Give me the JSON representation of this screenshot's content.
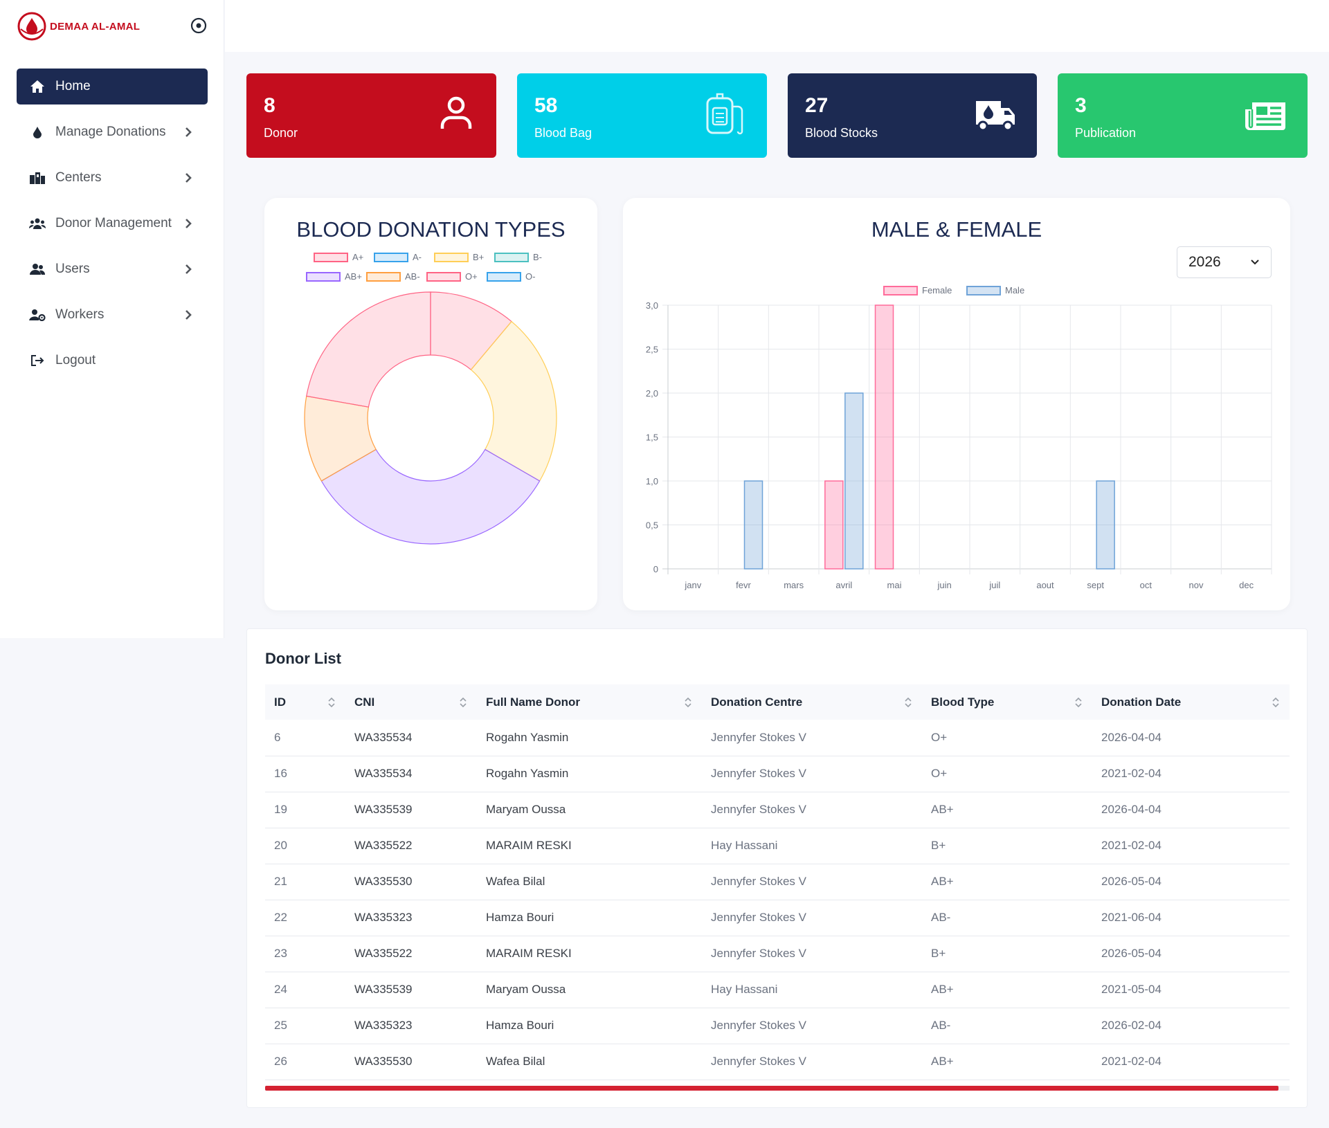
{
  "brand": {
    "name": "DEMAA AL-AMAL",
    "accent": "#c40d1e"
  },
  "sidebar": {
    "items": [
      {
        "label": "Home",
        "icon": "home-icon",
        "active": true,
        "has_submenu": false
      },
      {
        "label": "Manage Donations",
        "icon": "blood-drop-icon",
        "active": false,
        "has_submenu": true
      },
      {
        "label": "Centers",
        "icon": "hospital-icon",
        "active": false,
        "has_submenu": true
      },
      {
        "label": "Donor Management",
        "icon": "people-group-icon",
        "active": false,
        "has_submenu": true
      },
      {
        "label": "Users",
        "icon": "users-icon",
        "active": false,
        "has_submenu": true
      },
      {
        "label": "Workers",
        "icon": "user-gear-icon",
        "active": false,
        "has_submenu": true
      },
      {
        "label": "Logout",
        "icon": "logout-icon",
        "active": false,
        "has_submenu": false
      }
    ]
  },
  "stats": [
    {
      "value": "8",
      "label": "Donor",
      "color": "#c40d1e",
      "icon": "user-icon"
    },
    {
      "value": "58",
      "label": "Blood Bag",
      "color": "#00cfe8",
      "icon": "blood-bag-icon"
    },
    {
      "value": "27",
      "label": "Blood Stocks",
      "color": "#1c2a52",
      "icon": "truck-icon"
    },
    {
      "value": "3",
      "label": "Publication",
      "color": "#28c76f",
      "icon": "newspaper-icon"
    }
  ],
  "donation_types": {
    "title": "BLOOD DONATION TYPES"
  },
  "gender_chart": {
    "title": "MALE & FEMALE",
    "year": "2026"
  },
  "chart_data": [
    {
      "type": "pie",
      "title": "BLOOD DONATION TYPES",
      "categories": [
        "A+",
        "A-",
        "B+",
        "B-",
        "AB+",
        "AB-",
        "O+",
        "O-"
      ],
      "values": [
        1,
        0,
        2,
        0,
        3,
        1,
        2,
        0
      ],
      "colors": [
        "#ff6384",
        "#36a2eb",
        "#ffce56",
        "#4bc0c0",
        "#9966ff",
        "#ff9f40",
        "#ff6384",
        "#36a2eb"
      ],
      "legend": "top"
    },
    {
      "type": "bar",
      "title": "MALE & FEMALE",
      "categories": [
        "janv",
        "fevr",
        "mars",
        "avril",
        "mai",
        "juin",
        "juil",
        "aout",
        "sept",
        "oct",
        "nov",
        "dec"
      ],
      "series": [
        {
          "name": "Female",
          "values": [
            0,
            0,
            0,
            1,
            3,
            0,
            0,
            0,
            0,
            0,
            0,
            0
          ],
          "color": "#ff6b9a"
        },
        {
          "name": "Male",
          "values": [
            0,
            1,
            0,
            2,
            0,
            0,
            0,
            0,
            1,
            0,
            0,
            0
          ],
          "color": "#6fa3d8"
        }
      ],
      "ylim": [
        0,
        3
      ],
      "yticks": [
        "0",
        "0,5",
        "1,0",
        "1,5",
        "2,0",
        "2,5",
        "3,0"
      ],
      "legend": "top"
    }
  ],
  "donor_list": {
    "title": "Donor List",
    "columns": [
      "ID",
      "CNI",
      "Full Name Donor",
      "Donation Centre",
      "Blood Type",
      "Donation Date"
    ],
    "rows": [
      [
        "6",
        "WA335534",
        "Rogahn Yasmin",
        "Jennyfer Stokes V",
        "O+",
        "2026-04-04"
      ],
      [
        "16",
        "WA335534",
        "Rogahn Yasmin",
        "Jennyfer Stokes V",
        "O+",
        "2021-02-04"
      ],
      [
        "19",
        "WA335539",
        "Maryam Oussa",
        "Jennyfer Stokes V",
        "AB+",
        "2026-04-04"
      ],
      [
        "20",
        "WA335522",
        "MARAIM RESKI",
        "Hay Hassani",
        "B+",
        "2021-02-04"
      ],
      [
        "21",
        "WA335530",
        "Wafea Bilal",
        "Jennyfer Stokes V",
        "AB+",
        "2026-05-04"
      ],
      [
        "22",
        "WA335323",
        "Hamza Bouri",
        "Jennyfer Stokes V",
        "AB-",
        "2021-06-04"
      ],
      [
        "23",
        "WA335522",
        "MARAIM RESKI",
        "Jennyfer Stokes V",
        "B+",
        "2026-05-04"
      ],
      [
        "24",
        "WA335539",
        "Maryam Oussa",
        "Hay Hassani",
        "AB+",
        "2021-05-04"
      ],
      [
        "25",
        "WA335323",
        "Hamza Bouri",
        "Jennyfer Stokes V",
        "AB-",
        "2026-02-04"
      ],
      [
        "26",
        "WA335530",
        "Wafea Bilal",
        "Jennyfer Stokes V",
        "AB+",
        "2021-02-04"
      ]
    ]
  }
}
